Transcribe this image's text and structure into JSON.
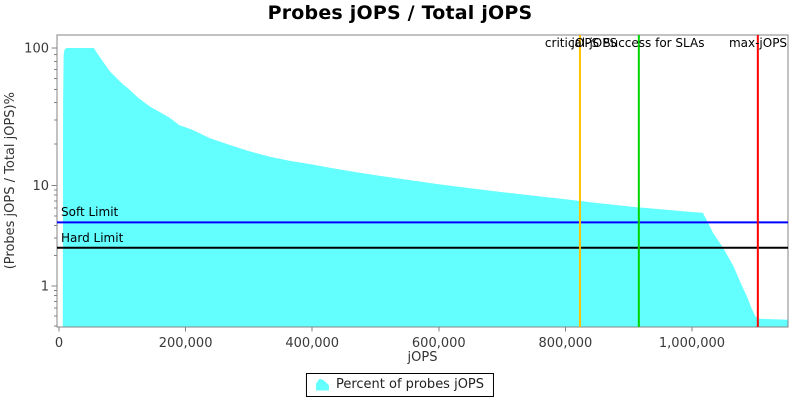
{
  "title": "Probes jOPS / Total jOPS",
  "legend": {
    "items": [
      {
        "label": "Percent of probes jOPS",
        "color": "#63FFFF"
      }
    ]
  },
  "chart_data": {
    "type": "area",
    "title": "Probes jOPS / Total jOPS",
    "xlabel": "jOPS",
    "ylabel": "(Probes jOPS / Total jOPS)%",
    "x_axis": {
      "min": 0,
      "max": 1152000,
      "ticks": [
        {
          "v": 0,
          "label": "0"
        },
        {
          "v": 200000,
          "label": "200,000"
        },
        {
          "v": 400000,
          "label": "400,000"
        },
        {
          "v": 600000,
          "label": "600,000"
        },
        {
          "v": 800000,
          "label": "800,000"
        },
        {
          "v": 1000000,
          "label": "1,000,000"
        }
      ]
    },
    "y_axis": {
      "scale": "log",
      "min": 0.39,
      "max": 124,
      "major_ticks": [
        {
          "v": 100,
          "label": "100"
        },
        {
          "v": 10,
          "label": "10"
        },
        {
          "v": 1,
          "label": "1"
        }
      ],
      "minor_ticks": [
        90,
        80,
        70,
        60,
        50,
        40,
        30,
        20,
        9,
        8,
        7,
        6,
        5,
        4,
        3,
        2,
        0.9,
        0.8,
        0.7,
        0.6,
        0.5,
        0.4
      ]
    },
    "series": [
      {
        "name": "Percent of probes jOPS",
        "type": "area",
        "fill": "#63FFFF",
        "points": [
          [
            6000,
            0.4
          ],
          [
            6500,
            40
          ],
          [
            7500,
            90
          ],
          [
            9000,
            98
          ],
          [
            12000,
            100
          ],
          [
            55000,
            100
          ],
          [
            60000,
            92
          ],
          [
            70000,
            79
          ],
          [
            80000,
            68
          ],
          [
            90000,
            61
          ],
          [
            100000,
            55
          ],
          [
            112000,
            49.5
          ],
          [
            125000,
            43.5
          ],
          [
            144000,
            37.4
          ],
          [
            160000,
            34
          ],
          [
            175000,
            31
          ],
          [
            190000,
            27.5
          ],
          [
            210000,
            25.5
          ],
          [
            238000,
            22.1
          ],
          [
            270000,
            19.7
          ],
          [
            300000,
            17.8
          ],
          [
            333000,
            16.2
          ],
          [
            365000,
            15.1
          ],
          [
            397000,
            14.3
          ],
          [
            430000,
            13.4
          ],
          [
            470000,
            12.5
          ],
          [
            510000,
            11.7
          ],
          [
            550000,
            11.0
          ],
          [
            600000,
            10.2
          ],
          [
            650000,
            9.4
          ],
          [
            700000,
            8.6
          ],
          [
            750000,
            7.9
          ],
          [
            800000,
            7.3
          ],
          [
            850000,
            6.7
          ],
          [
            900000,
            6.2
          ],
          [
            950000,
            5.8
          ],
          [
            1000000,
            5.45
          ],
          [
            1017000,
            5.35
          ],
          [
            1025000,
            4.3
          ],
          [
            1033000,
            3.4
          ],
          [
            1049000,
            2.4
          ],
          [
            1065000,
            1.6
          ],
          [
            1079000,
            1.0
          ],
          [
            1087000,
            0.78
          ],
          [
            1094000,
            0.6
          ],
          [
            1100000,
            0.5
          ],
          [
            1106000,
            0.47
          ],
          [
            1152000,
            0.46
          ]
        ]
      }
    ],
    "vlines": [
      {
        "name": "critical-jops-line",
        "label": "critical-jOPS",
        "color": "#FFC200",
        "x": 823000
      },
      {
        "name": "sla-success-line",
        "label": "jOPS Success for SLAs",
        "color": "#00D400",
        "x": 916000
      },
      {
        "name": "max-jops-line",
        "label": "max-jOPS",
        "color": "#FF0000",
        "x": 1104000
      }
    ],
    "hlines": [
      {
        "name": "soft-limit-line",
        "label": "Soft Limit",
        "color": "#0000FF",
        "y": 4.3
      },
      {
        "name": "hard-limit-line",
        "label": "Hard Limit",
        "color": "#000000",
        "y": 2.4
      }
    ],
    "legend_position": "bottom",
    "grid": false
  }
}
